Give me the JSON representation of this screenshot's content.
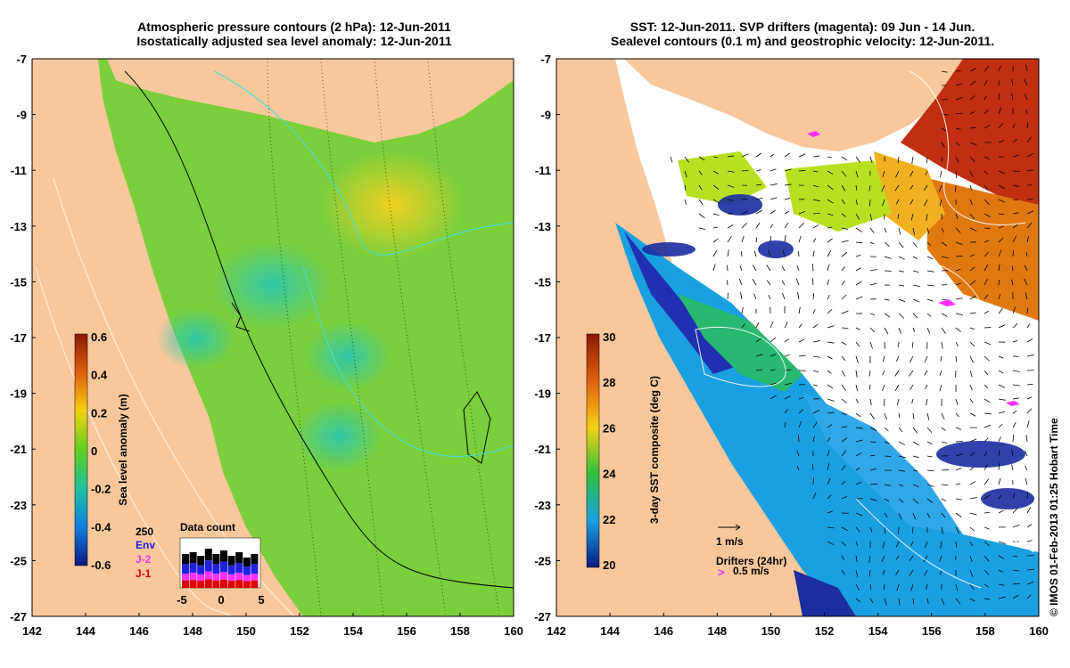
{
  "left_panel": {
    "title_line1": "Atmospheric pressure contours (2 hPa): 12-Jun-2011",
    "title_line2": "Isostatically adjusted sea level anomaly: 12-Jun-2011",
    "colorbar_label": "Sea level anomaly (m)",
    "colorbar_ticks": [
      "0.6",
      "0.4",
      "0.2",
      "0",
      "-0.2",
      "-0.4",
      "-0.6"
    ],
    "y_ticks": [
      "-7",
      "-9",
      "-11",
      "-13",
      "-15",
      "-17",
      "-19",
      "-21",
      "-23",
      "-25",
      "-27"
    ],
    "x_ticks": [
      "142",
      "144",
      "146",
      "148",
      "150",
      "152",
      "154",
      "156",
      "158",
      "160"
    ],
    "legend": {
      "top_value": "250",
      "items": [
        {
          "label": "Env",
          "color": "#2020e0"
        },
        {
          "label": "J-2",
          "color": "#ff30ff"
        },
        {
          "label": "J-1",
          "color": "#e00000"
        }
      ],
      "data_count_title": "Data count",
      "x_ticks": [
        "-5",
        "0",
        "5"
      ]
    }
  },
  "right_panel": {
    "title_line1": "SST: 12-Jun-2011. SVP drifters (magenta): 09 Jun - 14 Jun.",
    "title_line2": "Sealevel contours (0.1 m) and geostrophic velocity: 12-Jun-2011.",
    "colorbar_label": "3-day SST composite (deg C)",
    "colorbar_ticks": [
      "30",
      "28",
      "26",
      "24",
      "22",
      "20"
    ],
    "y_ticks": [
      "-7",
      "-9",
      "-11",
      "-13",
      "-15",
      "-17",
      "-19",
      "-21",
      "-23",
      "-25",
      "-27"
    ],
    "x_ticks": [
      "142",
      "144",
      "146",
      "148",
      "150",
      "152",
      "154",
      "156",
      "158",
      "160"
    ],
    "velocity_scale_label": "1 m/s",
    "drifters_label": "Drifters (24hr)",
    "drifters_speed_label": "0.5 m/s"
  },
  "credit": "© IMOS 01-Feb-2013 01:25 Hobart Time",
  "colors": {
    "land": "#f8c89c",
    "ocean_green": "#7ccf3c",
    "ocean_teal": "#3cc090"
  }
}
